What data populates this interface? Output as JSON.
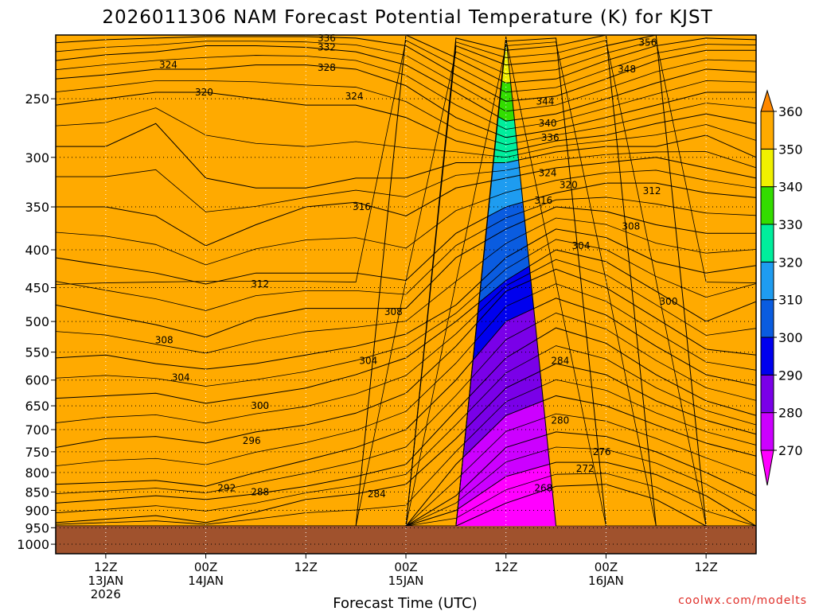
{
  "chart_data": {
    "type": "contour",
    "title": "2026011306 NAM Forecast Potential Temperature (K) for KJST",
    "xlabel": "Forecast Time (UTC)",
    "ylabel": "",
    "credit": "coolwx.com/modelts",
    "y_axis": {
      "type": "log",
      "reversed": true,
      "ylim": [
        1030,
        205
      ],
      "ticks": [
        250,
        300,
        350,
        400,
        450,
        500,
        550,
        600,
        650,
        700,
        750,
        800,
        850,
        900,
        950,
        1000
      ]
    },
    "x_axis": {
      "xlim": [
        0,
        84
      ],
      "ticks": [
        {
          "hour": 6,
          "lines": [
            "12Z",
            "13JAN",
            "2026"
          ]
        },
        {
          "hour": 18,
          "lines": [
            "00Z",
            "14JAN"
          ]
        },
        {
          "hour": 30,
          "lines": [
            "12Z"
          ]
        },
        {
          "hour": 42,
          "lines": [
            "00Z",
            "15JAN"
          ]
        },
        {
          "hour": 54,
          "lines": [
            "12Z"
          ]
        },
        {
          "hour": 66,
          "lines": [
            "00Z",
            "16JAN"
          ]
        },
        {
          "hour": 78,
          "lines": [
            "12Z"
          ]
        }
      ]
    },
    "grid": true,
    "colorbar": {
      "levels": [
        270,
        280,
        290,
        300,
        310,
        320,
        330,
        340,
        350,
        360
      ],
      "colors": [
        "#ff00ff",
        "#cc00ff",
        "#7a00e8",
        "#0000ee",
        "#0a5ce0",
        "#1e9cf0",
        "#00ee9c",
        "#33dd00",
        "#f0f000",
        "#ffaa00",
        "#ff8800"
      ]
    },
    "surface": {
      "color": "#a0522d",
      "pressure": 945
    },
    "hours": [
      0,
      6,
      12,
      18,
      24,
      30,
      36,
      42,
      48,
      54,
      60,
      66,
      72,
      78,
      84
    ],
    "isentropes": [
      {
        "theta": 268,
        "p": [
          null,
          null,
          null,
          null,
          null,
          null,
          null,
          null,
          null,
          880,
          835,
          830,
          870,
          null,
          null
        ]
      },
      {
        "theta": 272,
        "p": [
          null,
          null,
          null,
          null,
          null,
          null,
          null,
          null,
          900,
          810,
          775,
          775,
          805,
          860,
          null
        ]
      },
      {
        "theta": 276,
        "p": [
          null,
          null,
          null,
          null,
          null,
          null,
          null,
          null,
          860,
          740,
          705,
          715,
          750,
          800,
          860
        ]
      },
      {
        "theta": 280,
        "p": [
          null,
          null,
          null,
          null,
          null,
          null,
          null,
          null,
          780,
          670,
          630,
          650,
          690,
          730,
          760
        ]
      },
      {
        "theta": 284,
        "p": [
          935,
          925,
          915,
          935,
          905,
          870,
          855,
          830,
          720,
          615,
          570,
          590,
          640,
          680,
          710
        ]
      },
      {
        "theta": 288,
        "p": [
          880,
          870,
          860,
          870,
          855,
          835,
          810,
          780,
          660,
          560,
          510,
          535,
          590,
          640,
          670
        ]
      },
      {
        "theta": 292,
        "p": [
          830,
          825,
          820,
          835,
          800,
          770,
          740,
          700,
          600,
          500,
          465,
          490,
          540,
          590,
          610
        ]
      },
      {
        "theta": 296,
        "p": [
          740,
          720,
          715,
          730,
          705,
          690,
          665,
          625,
          540,
          455,
          425,
          450,
          495,
          545,
          555
        ]
      },
      {
        "theta": 300,
        "p": [
          635,
          630,
          625,
          645,
          630,
          615,
          590,
          560,
          500,
          440,
          400,
          415,
          455,
          500,
          470
        ]
      },
      {
        "theta": 304,
        "p": [
          560,
          555,
          570,
          580,
          570,
          555,
          540,
          520,
          475,
          410,
          375,
          385,
          415,
          430,
          420
        ]
      },
      {
        "theta": 308,
        "p": [
          475,
          490,
          505,
          525,
          495,
          480,
          480,
          480,
          410,
          375,
          350,
          355,
          370,
          380,
          380
        ]
      },
      {
        "theta": 312,
        "p": [
          410,
          420,
          430,
          445,
          430,
          430,
          430,
          440,
          380,
          350,
          335,
          325,
          325,
          335,
          340
        ]
      },
      {
        "theta": 316,
        "p": [
          350,
          350,
          360,
          395,
          370,
          350,
          345,
          360,
          330,
          320,
          310,
          305,
          300,
          310,
          320
        ]
      },
      {
        "theta": 320,
        "p": [
          290,
          290,
          270,
          320,
          330,
          330,
          320,
          320,
          305,
          305,
          295,
          290,
          290,
          280,
          300
        ]
      },
      {
        "theta": 324,
        "p": [
          255,
          250,
          245,
          245,
          250,
          255,
          255,
          265,
          285,
          295,
          285,
          280,
          270,
          262,
          270
        ]
      },
      {
        "theta": 328,
        "p": [
          235,
          232,
          228,
          228,
          225,
          225,
          228,
          240,
          265,
          282,
          275,
          265,
          255,
          245,
          245
        ]
      },
      {
        "theta": 332,
        "p": [
          222,
          218,
          216,
          212,
          212,
          213,
          216,
          225,
          245,
          268,
          262,
          250,
          238,
          228,
          230
        ]
      },
      {
        "theta": 336,
        "p": [
          210,
          208,
          207,
          206,
          206,
          206,
          207,
          212,
          232,
          252,
          248,
          235,
          222,
          215,
          215
        ]
      },
      {
        "theta": 340,
        "p": [
          null,
          null,
          null,
          null,
          null,
          null,
          null,
          205,
          220,
          238,
          235,
          222,
          212,
          207,
          208
        ]
      },
      {
        "theta": 344,
        "p": [
          null,
          null,
          null,
          null,
          null,
          null,
          null,
          null,
          212,
          225,
          222,
          212,
          205,
          null,
          null
        ]
      },
      {
        "theta": 348,
        "p": [
          null,
          null,
          null,
          null,
          null,
          null,
          null,
          null,
          207,
          215,
          212,
          205,
          null,
          null,
          null
        ]
      },
      {
        "theta": 352,
        "p": [
          null,
          null,
          null,
          null,
          null,
          null,
          null,
          null,
          null,
          209,
          207,
          null,
          null,
          null,
          null
        ]
      },
      {
        "theta": 356,
        "p": [
          null,
          null,
          null,
          null,
          null,
          null,
          null,
          null,
          null,
          206,
          null,
          null,
          null,
          null,
          null
        ]
      }
    ],
    "contour_labels": [
      {
        "text": "336",
        "hour": 32.5,
        "p": 207
      },
      {
        "text": "332",
        "hour": 32.5,
        "p": 213
      },
      {
        "text": "328",
        "hour": 32.5,
        "p": 227
      },
      {
        "text": "324",
        "hour": 13.5,
        "p": 225
      },
      {
        "text": "324",
        "hour": 35.8,
        "p": 248
      },
      {
        "text": "320",
        "hour": 17.8,
        "p": 245
      },
      {
        "text": "356",
        "hour": 71,
        "p": 210
      },
      {
        "text": "348",
        "hour": 68.5,
        "p": 228
      },
      {
        "text": "344",
        "hour": 58.7,
        "p": 252
      },
      {
        "text": "340",
        "hour": 59,
        "p": 270
      },
      {
        "text": "336",
        "hour": 59.3,
        "p": 282
      },
      {
        "text": "324",
        "hour": 59,
        "p": 315
      },
      {
        "text": "320",
        "hour": 61.5,
        "p": 327
      },
      {
        "text": "316",
        "hour": 58.5,
        "p": 343
      },
      {
        "text": "312",
        "hour": 71.5,
        "p": 333
      },
      {
        "text": "316",
        "hour": 36.7,
        "p": 350
      },
      {
        "text": "308",
        "hour": 69,
        "p": 372
      },
      {
        "text": "304",
        "hour": 63,
        "p": 395
      },
      {
        "text": "312",
        "hour": 24.5,
        "p": 445
      },
      {
        "text": "308",
        "hour": 40.5,
        "p": 485
      },
      {
        "text": "300",
        "hour": 73.5,
        "p": 470
      },
      {
        "text": "308",
        "hour": 13,
        "p": 530
      },
      {
        "text": "304",
        "hour": 37.5,
        "p": 565
      },
      {
        "text": "304",
        "hour": 15,
        "p": 595
      },
      {
        "text": "284",
        "hour": 60.5,
        "p": 565
      },
      {
        "text": "300",
        "hour": 24.5,
        "p": 650
      },
      {
        "text": "280",
        "hour": 60.5,
        "p": 680
      },
      {
        "text": "296",
        "hour": 23.5,
        "p": 725
      },
      {
        "text": "276",
        "hour": 65.5,
        "p": 750
      },
      {
        "text": "272",
        "hour": 63.5,
        "p": 790
      },
      {
        "text": "292",
        "hour": 20.5,
        "p": 840
      },
      {
        "text": "288",
        "hour": 24.5,
        "p": 850
      },
      {
        "text": "284",
        "hour": 38.5,
        "p": 855
      },
      {
        "text": "268",
        "hour": 58.5,
        "p": 840
      }
    ]
  }
}
